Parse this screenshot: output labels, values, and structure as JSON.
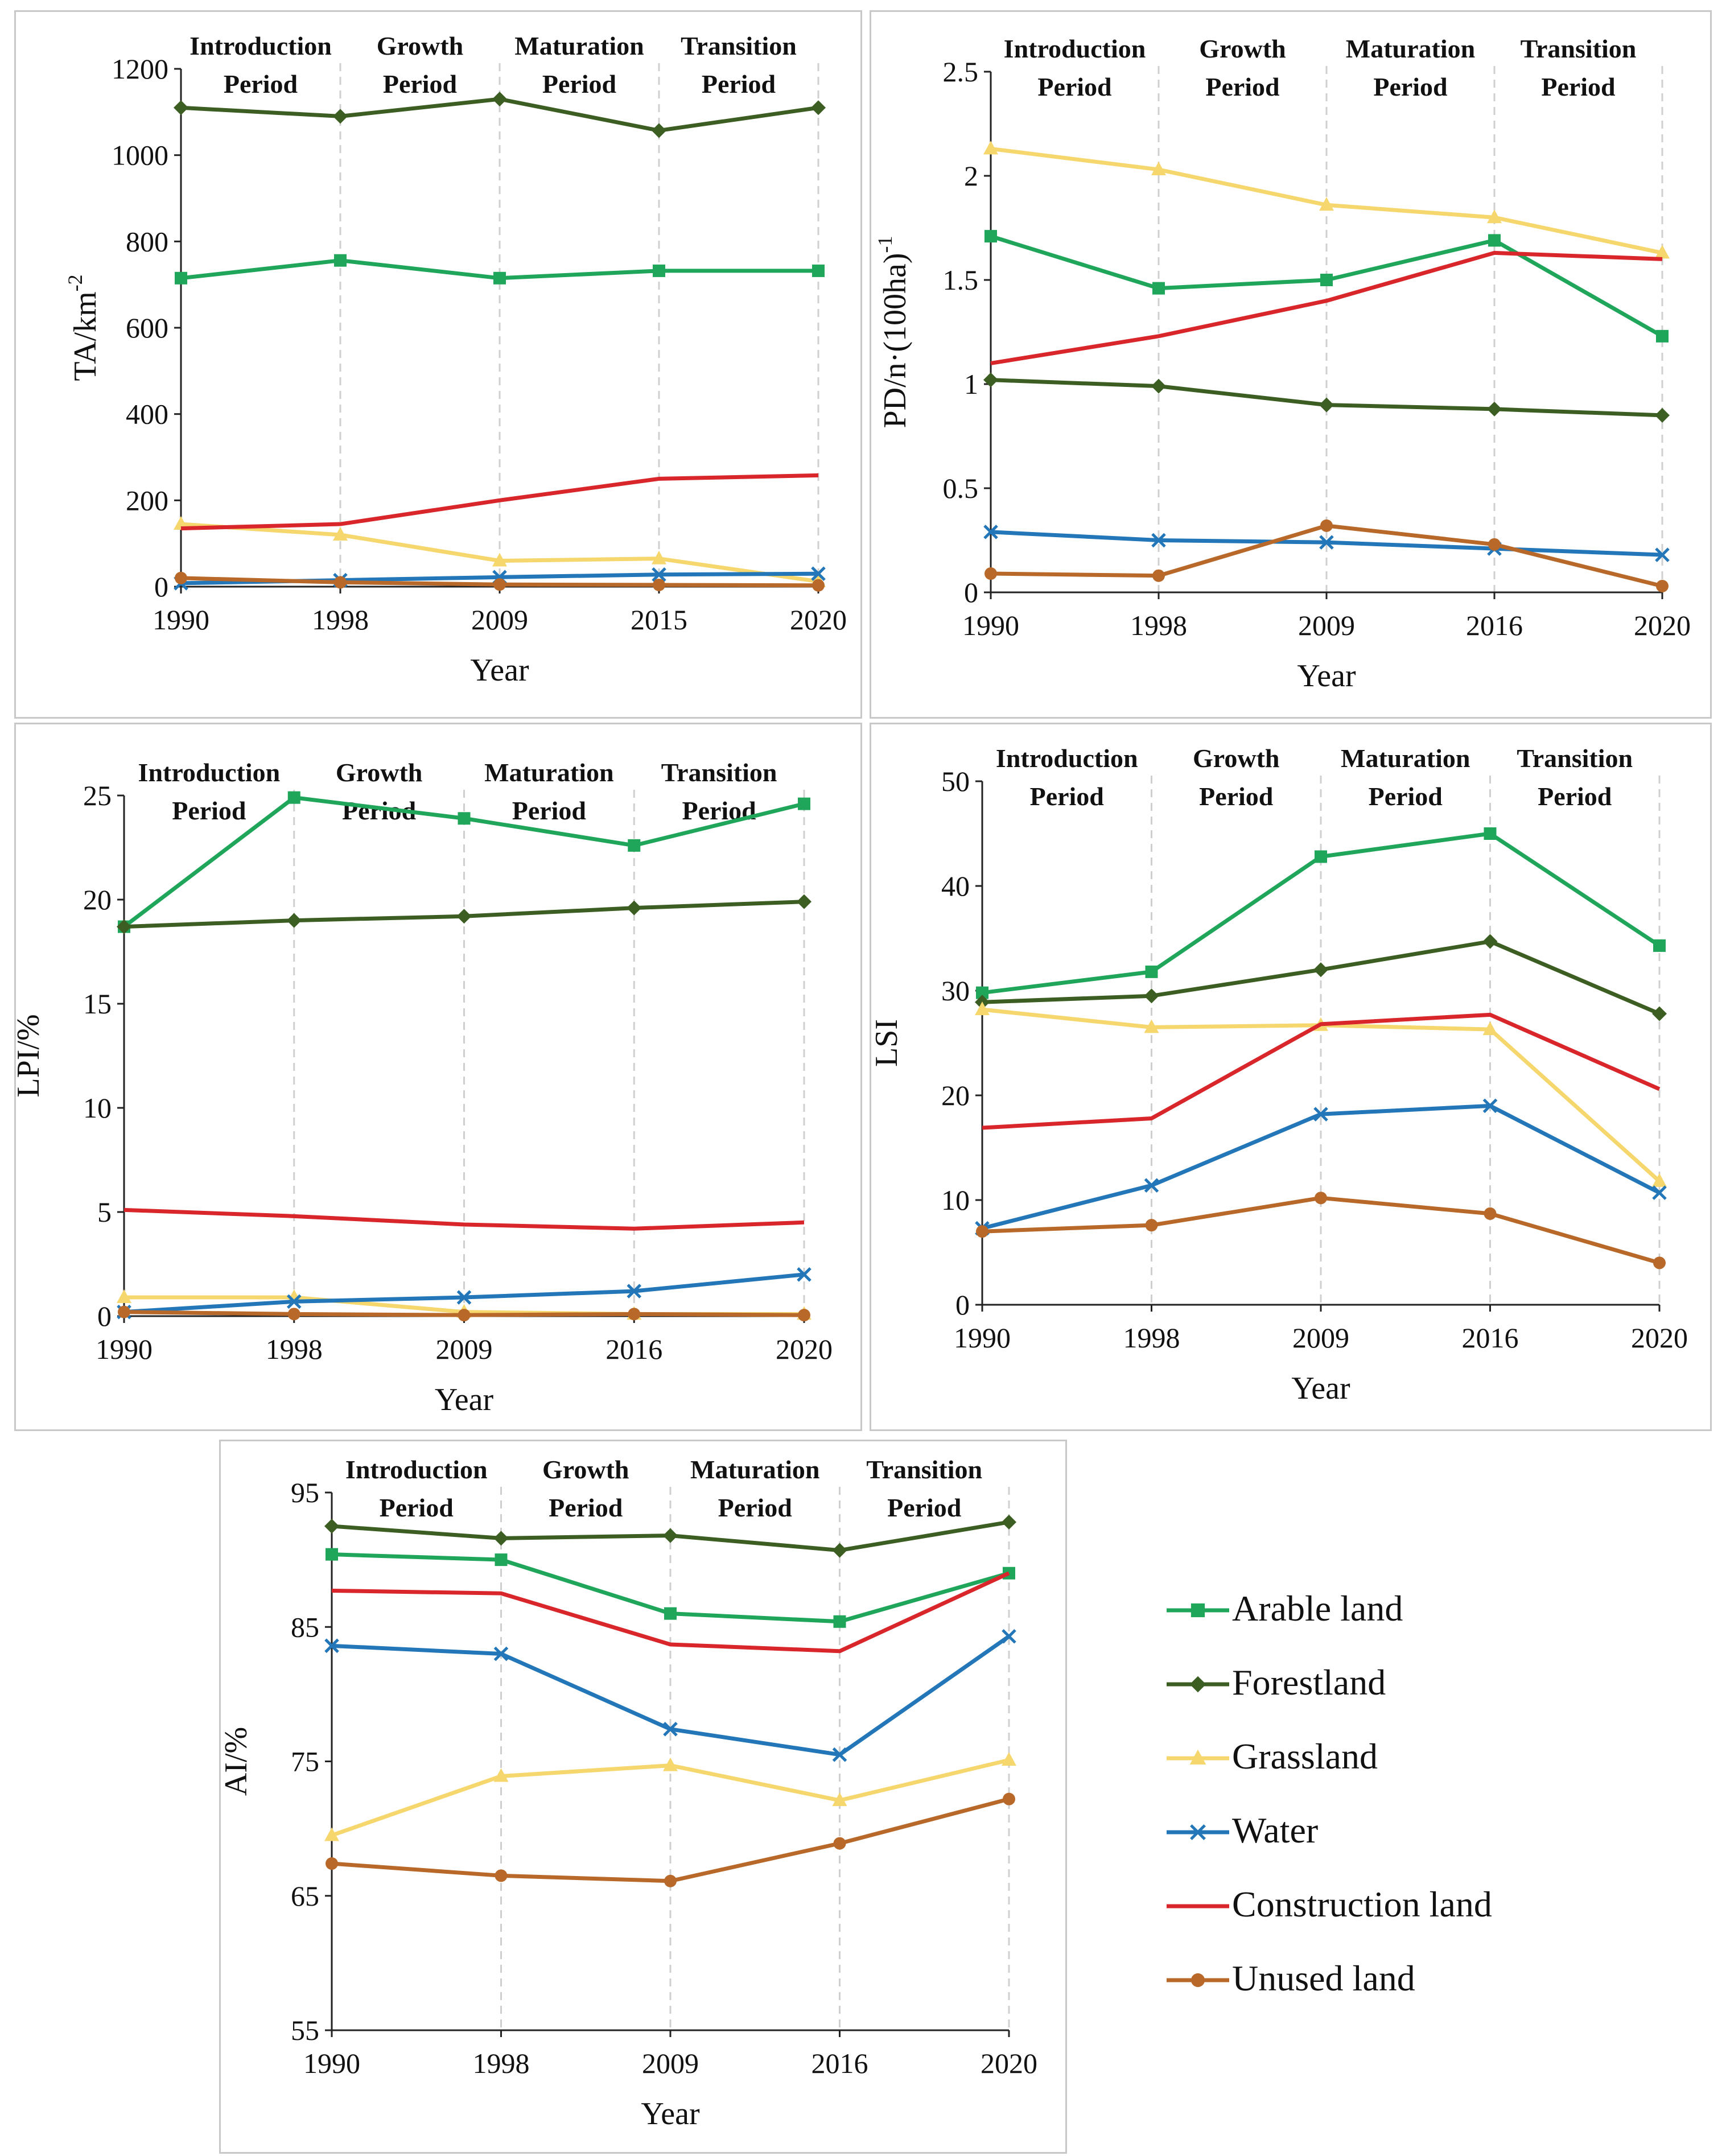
{
  "series_styles": [
    {
      "name": "Arable land",
      "color": "#1fa65a",
      "marker": "square"
    },
    {
      "name": "Forestland",
      "color": "#3d5e23",
      "marker": "diamond"
    },
    {
      "name": "Grassland",
      "color": "#f5d76e",
      "marker": "triangle"
    },
    {
      "name": "Water",
      "color": "#2377b8",
      "marker": "cross"
    },
    {
      "name": "Construction land",
      "color": "#d8262b",
      "marker": "none"
    },
    {
      "name": "Unused land",
      "color": "#b8692a",
      "marker": "circle"
    }
  ],
  "periods": [
    {
      "l1": "Introduction",
      "l2": "Period"
    },
    {
      "l1": "Growth",
      "l2": "Period"
    },
    {
      "l1": "Maturation",
      "l2": "Period"
    },
    {
      "l1": "Transition",
      "l2": "Period"
    }
  ],
  "chart_data": [
    {
      "id": "ta",
      "type": "line",
      "title": "",
      "xlabel": "Year",
      "ylabel": "TA/km",
      "ylabel_sup": "-2",
      "categories": [
        "1990",
        "1998",
        "2009",
        "2015",
        "2020"
      ],
      "ylim": [
        0,
        1200
      ],
      "yticks": [
        "0",
        "200",
        "400",
        "600",
        "800",
        "1000",
        "1200"
      ],
      "series": [
        {
          "name": "Arable land",
          "values": [
            715,
            756,
            715,
            732,
            732
          ]
        },
        {
          "name": "Forestland",
          "values": [
            1110,
            1090,
            1130,
            1057,
            1110
          ]
        },
        {
          "name": "Grassland",
          "values": [
            145,
            120,
            60,
            65,
            12
          ]
        },
        {
          "name": "Water",
          "values": [
            8,
            15,
            22,
            28,
            30
          ]
        },
        {
          "name": "Construction land",
          "values": [
            135,
            145,
            200,
            250,
            258
          ]
        },
        {
          "name": "Unused land",
          "values": [
            20,
            10,
            5,
            4,
            3
          ]
        }
      ]
    },
    {
      "id": "pd",
      "type": "line",
      "title": "",
      "xlabel": "Year",
      "ylabel": "PD/n·(100ha)",
      "ylabel_sup": "-1",
      "categories": [
        "1990",
        "1998",
        "2009",
        "2016",
        "2020"
      ],
      "ylim": [
        0,
        2.5
      ],
      "yticks": [
        "0",
        "0.5",
        "1",
        "1.5",
        "2",
        "2.5"
      ],
      "series": [
        {
          "name": "Arable land",
          "values": [
            1.71,
            1.46,
            1.5,
            1.69,
            1.23
          ]
        },
        {
          "name": "Forestland",
          "values": [
            1.02,
            0.99,
            0.9,
            0.88,
            0.85
          ]
        },
        {
          "name": "Grassland",
          "values": [
            2.13,
            2.03,
            1.86,
            1.8,
            1.63
          ]
        },
        {
          "name": "Water",
          "values": [
            0.29,
            0.25,
            0.24,
            0.21,
            0.18
          ]
        },
        {
          "name": "Construction land",
          "values": [
            1.1,
            1.23,
            1.4,
            1.63,
            1.6
          ]
        },
        {
          "name": "Unused land",
          "values": [
            0.09,
            0.08,
            0.32,
            0.23,
            0.03
          ]
        }
      ]
    },
    {
      "id": "lpi",
      "type": "line",
      "title": "",
      "xlabel": "Year",
      "ylabel": "LPI/%",
      "ylabel_sup": "",
      "categories": [
        "1990",
        "1998",
        "2009",
        "2016",
        "2020"
      ],
      "ylim": [
        0,
        25
      ],
      "yticks": [
        "0",
        "5",
        "10",
        "15",
        "20",
        "25"
      ],
      "series": [
        {
          "name": "Arable land",
          "values": [
            18.7,
            24.9,
            23.9,
            22.6,
            24.6
          ]
        },
        {
          "name": "Forestland",
          "values": [
            18.7,
            19.0,
            19.2,
            19.6,
            19.9
          ]
        },
        {
          "name": "Grassland",
          "values": [
            0.9,
            0.9,
            0.2,
            0.1,
            0.1
          ]
        },
        {
          "name": "Water",
          "values": [
            0.2,
            0.7,
            0.9,
            1.2,
            2.0
          ]
        },
        {
          "name": "Construction land",
          "values": [
            5.1,
            4.8,
            4.4,
            4.2,
            4.5
          ]
        },
        {
          "name": "Unused land",
          "values": [
            0.2,
            0.1,
            0.05,
            0.1,
            0.05
          ]
        }
      ]
    },
    {
      "id": "lsi",
      "type": "line",
      "title": "",
      "xlabel": "Year",
      "ylabel": "LSI",
      "ylabel_sup": "",
      "categories": [
        "1990",
        "1998",
        "2009",
        "2016",
        "2020"
      ],
      "ylim": [
        0,
        50
      ],
      "yticks": [
        "0",
        "10",
        "20",
        "30",
        "40",
        "50"
      ],
      "series": [
        {
          "name": "Arable land",
          "values": [
            29.8,
            31.8,
            42.8,
            45.0,
            34.3
          ]
        },
        {
          "name": "Forestland",
          "values": [
            28.9,
            29.5,
            32.0,
            34.7,
            27.8
          ]
        },
        {
          "name": "Grassland",
          "values": [
            28.2,
            26.5,
            26.7,
            26.3,
            11.8
          ]
        },
        {
          "name": "Water",
          "values": [
            7.3,
            11.4,
            18.2,
            19.0,
            10.7
          ]
        },
        {
          "name": "Construction land",
          "values": [
            16.9,
            17.8,
            26.8,
            27.7,
            20.6
          ]
        },
        {
          "name": "Unused land",
          "values": [
            7.0,
            7.6,
            10.2,
            8.7,
            4.0
          ]
        }
      ]
    },
    {
      "id": "ai",
      "type": "line",
      "title": "",
      "xlabel": "Year",
      "ylabel": "AI/%",
      "ylabel_sup": "",
      "categories": [
        "1990",
        "1998",
        "2009",
        "2016",
        "2020"
      ],
      "ylim": [
        55,
        95
      ],
      "yticks": [
        "55",
        "65",
        "75",
        "85",
        "95"
      ],
      "series": [
        {
          "name": "Arable land",
          "values": [
            90.4,
            90.0,
            86.0,
            85.4,
            89.0
          ]
        },
        {
          "name": "Forestland",
          "values": [
            92.5,
            91.6,
            91.8,
            90.7,
            92.8
          ]
        },
        {
          "name": "Grassland",
          "values": [
            69.5,
            73.9,
            74.7,
            72.1,
            75.1
          ]
        },
        {
          "name": "Water",
          "values": [
            83.6,
            83.0,
            77.4,
            75.5,
            84.3
          ]
        },
        {
          "name": "Construction land",
          "values": [
            87.7,
            87.5,
            83.7,
            83.2,
            89.0
          ]
        },
        {
          "name": "Unused land",
          "values": [
            67.4,
            66.5,
            66.1,
            68.9,
            72.2
          ]
        }
      ]
    }
  ]
}
